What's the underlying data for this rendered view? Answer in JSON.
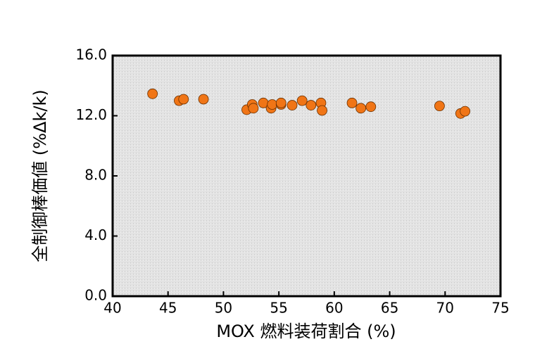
{
  "chart_data": {
    "type": "scatter",
    "x_label": "MOX 燃料装荷割合 (%)",
    "y_label": "全制御棒価値 (%Δk/k)",
    "color": "#f07516",
    "x": [
      43.6,
      46.0,
      46.4,
      48.2,
      52.1,
      52.6,
      52.7,
      53.6,
      54.3,
      54.4,
      55.2,
      55.2,
      56.2,
      57.1,
      57.9,
      58.8,
      58.9,
      61.6,
      62.4,
      63.3,
      69.5,
      71.4,
      71.8
    ],
    "values": [
      13.46,
      13.0,
      13.1,
      13.1,
      12.4,
      12.75,
      12.5,
      12.85,
      12.5,
      12.75,
      12.75,
      12.85,
      12.7,
      13.0,
      12.7,
      12.85,
      12.35,
      12.85,
      12.5,
      12.6,
      12.65,
      12.15,
      12.3
    ],
    "xlim": [
      40,
      75
    ],
    "xticks": [
      40,
      45,
      50,
      55,
      60,
      65,
      70,
      75
    ],
    "ylim": [
      0,
      16
    ],
    "yticks": [
      {
        "value": 0,
        "label": "0.0"
      },
      {
        "value": 4,
        "label": "4.0"
      },
      {
        "value": 8,
        "label": "8.0"
      },
      {
        "value": 12,
        "label": "12.0"
      },
      {
        "value": 16,
        "label": "16.0"
      }
    ]
  }
}
